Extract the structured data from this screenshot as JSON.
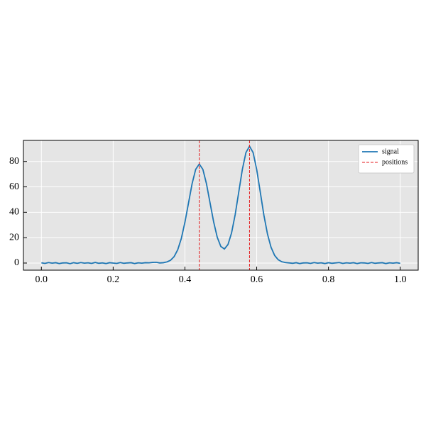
{
  "chart_data": {
    "type": "line",
    "x": [
      0,
      0.01,
      0.02,
      0.03,
      0.04,
      0.05,
      0.06,
      0.07,
      0.08,
      0.09,
      0.1,
      0.11,
      0.12,
      0.13,
      0.14,
      0.15,
      0.16,
      0.17,
      0.18,
      0.19,
      0.2,
      0.21,
      0.22,
      0.23,
      0.24,
      0.25,
      0.26,
      0.27,
      0.28,
      0.29,
      0.3,
      0.31,
      0.32,
      0.33,
      0.34,
      0.35,
      0.36,
      0.37,
      0.38,
      0.39,
      0.4,
      0.41,
      0.42,
      0.43,
      0.44,
      0.45,
      0.46,
      0.47,
      0.48,
      0.49,
      0.5,
      0.51,
      0.52,
      0.53,
      0.54,
      0.55,
      0.56,
      0.57,
      0.58,
      0.59,
      0.6,
      0.61,
      0.62,
      0.63,
      0.64,
      0.65,
      0.66,
      0.67,
      0.68,
      0.69,
      0.7,
      0.71,
      0.72,
      0.73,
      0.74,
      0.75,
      0.76,
      0.77,
      0.78,
      0.79,
      0.8,
      0.81,
      0.82,
      0.83,
      0.84,
      0.85,
      0.86,
      0.87,
      0.88,
      0.89,
      0.9,
      0.91,
      0.92,
      0.93,
      0.94,
      0.95,
      0.96,
      0.97,
      0.98,
      0.99,
      1
    ],
    "series": [
      {
        "name": "signal",
        "color": "#1f77b4",
        "values": [
          0.2,
          -0.3,
          0.4,
          -0.1,
          0.3,
          -0.4,
          0.1,
          0.2,
          -0.5,
          0.3,
          -0.2,
          0.4,
          -0.1,
          0.2,
          -0.3,
          0.5,
          -0.2,
          0.1,
          -0.4,
          0.3,
          0.0,
          -0.3,
          0.4,
          -0.2,
          0.1,
          0.3,
          -0.4,
          0.2,
          -0.1,
          0.3,
          0.2,
          0.5,
          0.6,
          0.1,
          0.3,
          0.9,
          2.2,
          5.1,
          10.5,
          19.4,
          32.1,
          47.3,
          62.5,
          73.8,
          78.0,
          73.8,
          62.5,
          47.4,
          32.5,
          20.4,
          13.1,
          11.1,
          14.6,
          23.8,
          38.1,
          55.9,
          73.7,
          87.0,
          92.0,
          87.0,
          73.7,
          55.8,
          37.8,
          22.9,
          12.4,
          6.0,
          2.6,
          1.0,
          0.4,
          0.1,
          -0.2,
          0.3,
          -0.4,
          0.1,
          0.2,
          -0.3,
          0.4,
          -0.1,
          0.2,
          -0.4,
          0.3,
          -0.2,
          0.1,
          0.4,
          -0.3,
          0.2,
          -0.1,
          0.3,
          -0.4,
          0.2,
          0.1,
          -0.3,
          0.4,
          -0.2,
          0.1,
          0.3,
          -0.4,
          0.2,
          -0.1,
          0.3,
          -0.2
        ]
      },
      {
        "name": "positions",
        "color": "#e41a1c",
        "vlines": [
          0.44,
          0.58
        ]
      }
    ],
    "xlim": [
      -0.05,
      1.05
    ],
    "ylim": [
      -5.6,
      96.6
    ],
    "xticks": [
      {
        "value": 0,
        "label": "0.0"
      },
      0.2,
      0.4,
      0.6,
      0.8,
      {
        "value": 1,
        "label": "1.0"
      }
    ],
    "yticks": [
      0,
      20,
      40,
      60,
      80
    ],
    "grid": true,
    "legend": "upper right"
  }
}
